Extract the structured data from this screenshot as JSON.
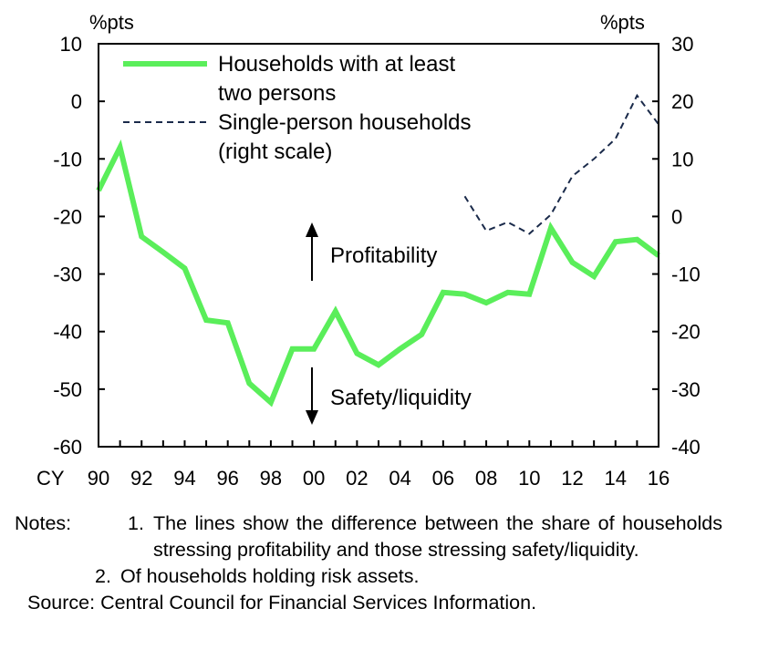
{
  "chart_data": {
    "type": "line",
    "left_axis": {
      "unit": "%pts",
      "ylim": [
        -60,
        10
      ],
      "ticks": [
        10,
        0,
        -10,
        -20,
        -30,
        -40,
        -50,
        -60
      ]
    },
    "right_axis": {
      "unit": "%pts",
      "ylim": [
        -40,
        30
      ],
      "ticks": [
        30,
        20,
        10,
        0,
        -10,
        -20,
        -30,
        -40
      ]
    },
    "x_axis": {
      "prefix": "CY",
      "xlim": [
        1990,
        2016
      ],
      "ticks": [
        {
          "year": 1990,
          "label": "90"
        },
        {
          "year": 1992,
          "label": "92"
        },
        {
          "year": 1994,
          "label": "94"
        },
        {
          "year": 1996,
          "label": "96"
        },
        {
          "year": 1998,
          "label": "98"
        },
        {
          "year": 2000,
          "label": "00"
        },
        {
          "year": 2002,
          "label": "02"
        },
        {
          "year": 2004,
          "label": "04"
        },
        {
          "year": 2006,
          "label": "06"
        },
        {
          "year": 2008,
          "label": "08"
        },
        {
          "year": 2010,
          "label": "10"
        },
        {
          "year": 2012,
          "label": "12"
        },
        {
          "year": 2014,
          "label": "14"
        },
        {
          "year": 2016,
          "label": "16"
        }
      ]
    },
    "series": [
      {
        "name": "Households with at least two persons",
        "axis": "left",
        "color": "#5aee5a",
        "style": "solid",
        "x": [
          1990,
          1991,
          1992,
          1993,
          1994,
          1995,
          1996,
          1997,
          1998,
          1999,
          2000,
          2001,
          2002,
          2003,
          2004,
          2005,
          2006,
          2007,
          2008,
          2009,
          2010,
          2011,
          2012,
          2013,
          2014,
          2015,
          2016
        ],
        "y": [
          -15.5,
          -8,
          -23.5,
          -26.2,
          -29,
          -38,
          -38.5,
          -49,
          -52.3,
          -43,
          -43,
          -36.5,
          -43.8,
          -45.8,
          -43,
          -40.5,
          -33.2,
          -33.5,
          -35,
          -33.2,
          -33.5,
          -22,
          -28,
          -30.4,
          -24.4,
          -24,
          -26.8
        ]
      },
      {
        "name": "Single-person households (right scale)",
        "axis": "right",
        "color": "#1a2a4a",
        "style": "dashed",
        "x": [
          2007,
          2008,
          2009,
          2010,
          2011,
          2012,
          2013,
          2014,
          2015,
          2016
        ],
        "y": [
          3.5,
          -2.5,
          -1,
          -3,
          0.3,
          7,
          10,
          13.5,
          21,
          16
        ]
      }
    ],
    "legend_position": "top-left",
    "annotations": [
      {
        "text": "Profitability",
        "direction": "up"
      },
      {
        "text": "Safety/liquidity",
        "direction": "down"
      }
    ]
  },
  "legend_label_lines": [
    [
      "Households with at least",
      "two persons"
    ],
    [
      "Single-person households",
      "(right scale)"
    ]
  ],
  "notes": {
    "heading": "Notes:",
    "items": [
      {
        "num": "1.",
        "text": "The lines show the difference between the share of households stressing profitability and those stressing safety/liquidity."
      },
      {
        "num": "2.",
        "text": "Of households holding risk assets."
      }
    ],
    "source": "Source: Central Council for Financial Services Information."
  }
}
